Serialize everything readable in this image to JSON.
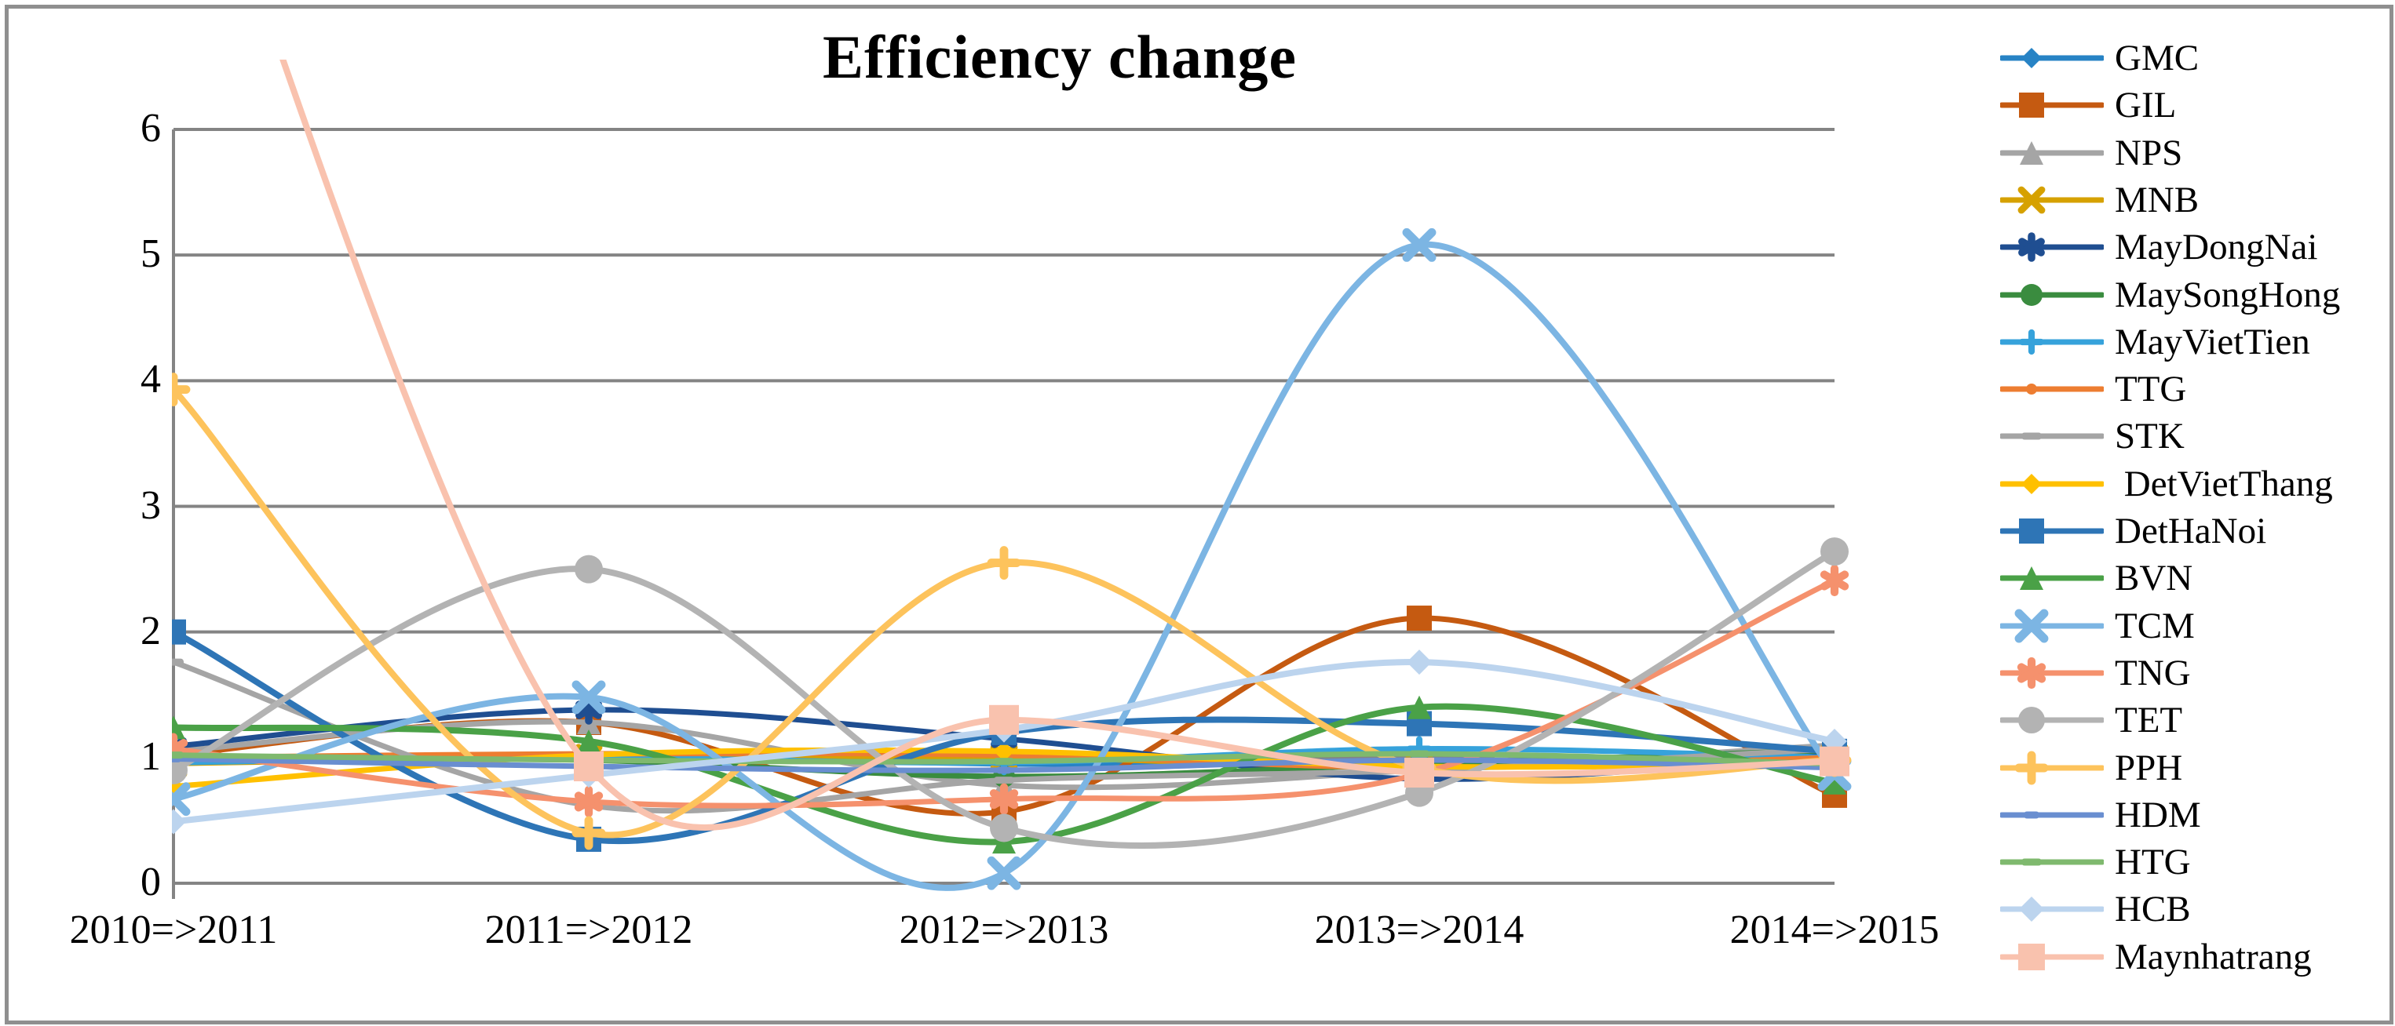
{
  "chart_data": {
    "type": "line",
    "title": "Efficiency change",
    "xlabel": "",
    "ylabel": "",
    "categories": [
      "2010=>2011",
      "2011=>2012",
      "2012=>2013",
      "2013=>2014",
      "2014=>2015"
    ],
    "yticks": [
      0,
      1,
      2,
      3,
      4,
      5,
      6
    ],
    "ylim": [
      0,
      6
    ],
    "grid": "horizontal",
    "legend_position": "right",
    "line_style": "smoothed",
    "note": "Maynhatrang first value is off-scale above the plot top (estimated ~9)",
    "axis_color": "#848484",
    "series": [
      {
        "name": "GMC",
        "color": "#2783C5",
        "marker": "diamond",
        "size": 26,
        "lw": 7,
        "values": [
          0.98,
          1.02,
          0.95,
          0.96,
          1.03
        ]
      },
      {
        "name": "GIL",
        "color": "#C55A11",
        "marker": "square",
        "size": 32,
        "lw": 7,
        "values": [
          1.02,
          1.28,
          0.57,
          2.11,
          0.7
        ]
      },
      {
        "name": "NPS",
        "color": "#A5A5A5",
        "marker": "triangle",
        "size": 30,
        "lw": 7,
        "values": [
          1.05,
          1.28,
          0.78,
          0.9,
          1.1
        ]
      },
      {
        "name": "MNB",
        "color": "#D6A100",
        "marker": "x",
        "size": 26,
        "lw": 6,
        "values": [
          0.95,
          1.0,
          1.0,
          0.92,
          1.0
        ]
      },
      {
        "name": "MayDongNai",
        "color": "#1F4E91",
        "marker": "asterisk",
        "size": 28,
        "lw": 7,
        "values": [
          1.09,
          1.38,
          1.15,
          0.83,
          1.02
        ]
      },
      {
        "name": "MaySongHong",
        "color": "#3A8C3F",
        "marker": "circle",
        "size": 28,
        "lw": 7,
        "values": [
          1.0,
          0.98,
          0.85,
          0.95,
          1.06
        ]
      },
      {
        "name": "MayVietTien",
        "color": "#36A2DB",
        "marker": "plus",
        "size": 24,
        "lw": 7,
        "values": [
          0.96,
          1.0,
          0.96,
          1.07,
          1.0
        ]
      },
      {
        "name": "TTG",
        "color": "#ED7D31",
        "marker": "circle",
        "size": 14,
        "lw": 7,
        "values": [
          1.0,
          1.03,
          1.02,
          0.92,
          1.0
        ]
      },
      {
        "name": "STK",
        "color": "#A5A5A5",
        "marker": "dash",
        "size": 26,
        "lw": 7,
        "values": [
          1.76,
          0.62,
          0.82,
          0.9,
          1.07
        ]
      },
      {
        "name": " DetVietThang",
        "color": "#FFC000",
        "marker": "diamond",
        "size": 26,
        "lw": 7,
        "values": [
          0.77,
          1.02,
          1.05,
          0.93,
          0.95
        ]
      },
      {
        "name": "DetHaNoi",
        "color": "#2E75B6",
        "marker": "square",
        "size": 32,
        "lw": 8,
        "values": [
          2.0,
          0.35,
          1.2,
          1.27,
          1.05
        ]
      },
      {
        "name": "BVN",
        "color": "#4AA147",
        "marker": "triangle",
        "size": 30,
        "lw": 8,
        "values": [
          1.24,
          1.13,
          0.33,
          1.4,
          0.8
        ]
      },
      {
        "name": "TCM",
        "color": "#7CB5E3",
        "marker": "x",
        "size": 32,
        "lw": 8,
        "values": [
          0.67,
          1.48,
          0.08,
          5.08,
          0.87
        ]
      },
      {
        "name": "TNG",
        "color": "#F5916D",
        "marker": "asterisk",
        "size": 30,
        "lw": 7,
        "values": [
          1.07,
          0.65,
          0.67,
          0.87,
          2.41
        ]
      },
      {
        "name": "TET",
        "color": "#B3B3B3",
        "marker": "circle",
        "size": 36,
        "lw": 8,
        "values": [
          0.9,
          2.5,
          0.44,
          0.72,
          2.64
        ]
      },
      {
        "name": "PPH",
        "color": "#FDC35C",
        "marker": "plus",
        "size": 32,
        "lw": 8,
        "values": [
          3.93,
          0.4,
          2.55,
          0.92,
          0.98
        ]
      },
      {
        "name": "HDM",
        "color": "#698ED0",
        "marker": "dash",
        "size": 20,
        "lw": 7,
        "values": [
          0.99,
          0.93,
          0.9,
          0.98,
          0.92
        ]
      },
      {
        "name": "HTG",
        "color": "#7FB96E",
        "marker": "dash",
        "size": 26,
        "lw": 7,
        "values": [
          1.02,
          0.98,
          0.97,
          1.03,
          0.95
        ]
      },
      {
        "name": "HCB",
        "color": "#BCD4EE",
        "marker": "diamond",
        "size": 32,
        "lw": 8,
        "values": [
          0.49,
          0.86,
          1.22,
          1.76,
          1.13
        ]
      },
      {
        "name": "Maynhatrang",
        "color": "#F9C2AE",
        "marker": "square",
        "size": 38,
        "lw": 8,
        "values": [
          9.0,
          0.93,
          1.3,
          0.88,
          0.97
        ]
      }
    ]
  }
}
